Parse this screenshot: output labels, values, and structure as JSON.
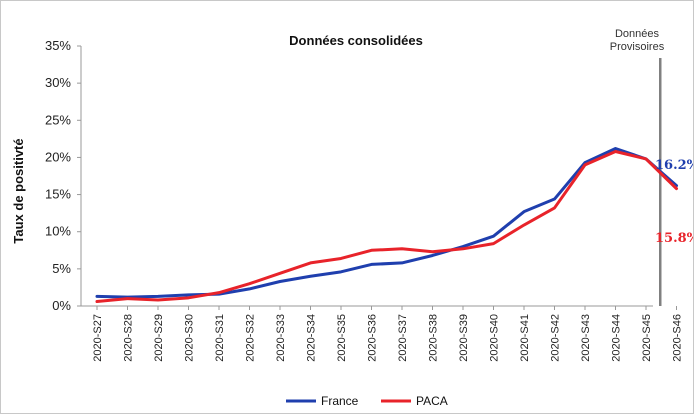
{
  "chart_data": {
    "type": "line",
    "title": "Données consolidées",
    "ylabel": "Taux de positivté",
    "xlabel": "",
    "ylim": [
      0,
      35
    ],
    "y_ticks": [
      "0%",
      "5%",
      "10%",
      "15%",
      "20%",
      "25%",
      "30%",
      "35%"
    ],
    "y_tick_values": [
      0,
      5,
      10,
      15,
      20,
      25,
      30,
      35
    ],
    "categories": [
      "2020-S27",
      "2020-S28",
      "2020-S29",
      "2020-S30",
      "2020-S31",
      "2020-S32",
      "2020-S33",
      "2020-S34",
      "2020-S35",
      "2020-S36",
      "2020-S37",
      "2020-S38",
      "2020-S39",
      "2020-S40",
      "2020-S41",
      "2020-S42",
      "2020-S43",
      "2020-S44",
      "2020-S45",
      "2020-S46"
    ],
    "series": [
      {
        "name": "France",
        "color": "#1f3fae",
        "values": [
          1.3,
          1.2,
          1.3,
          1.5,
          1.6,
          2.3,
          3.3,
          4.0,
          4.6,
          5.6,
          5.8,
          6.8,
          8.0,
          9.4,
          12.7,
          14.4,
          19.3,
          21.2,
          19.8,
          16.2
        ]
      },
      {
        "name": "PACA",
        "color": "#e8232a",
        "values": [
          0.6,
          1.0,
          0.8,
          1.1,
          1.8,
          3.0,
          4.4,
          5.8,
          6.4,
          7.5,
          7.7,
          7.3,
          7.7,
          8.4,
          10.9,
          13.2,
          19.0,
          20.8,
          19.8,
          15.8
        ]
      }
    ],
    "annotations": {
      "provisional_label_line1": "Données",
      "provisional_label_line2": "Provisoires",
      "france_end_label": "16.2%",
      "paca_end_label": "15.8%"
    },
    "legend_position": "bottom",
    "grid": false
  }
}
